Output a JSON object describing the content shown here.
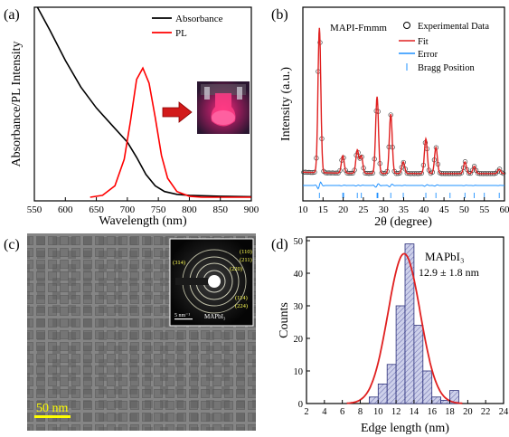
{
  "panels": {
    "a": {
      "label": "(a)"
    },
    "b": {
      "label": "(b)"
    },
    "c": {
      "label": "(c)",
      "scale_bar": "50 nm",
      "inset_scale": "5 nm⁻¹",
      "inset_title": "MAPbI₃",
      "rings": [
        "(110)",
        "(211)",
        "(220)",
        "(314)",
        "(114)",
        "(224)"
      ]
    },
    "d": {
      "label": "(d)"
    }
  },
  "colors": {
    "absorbance": "#000000",
    "pl": "#ff0000",
    "fit": "#e02020",
    "error": "#1e90ff",
    "bragg": "#1e90ff",
    "hist_fill": "#c9cce6",
    "hist_edge": "#2b2f7a"
  },
  "chart_data": [
    {
      "panel": "a",
      "type": "line",
      "xlabel": "Wavelength (nm)",
      "ylabel": "Absorbance/PL Intensity",
      "xlim": [
        550,
        900
      ],
      "xticks": [
        550,
        600,
        650,
        700,
        750,
        800,
        850,
        900
      ],
      "legend": "top-right",
      "series": [
        {
          "name": "Absorbance",
          "x": [
            555,
            575,
            600,
            625,
            650,
            675,
            700,
            715,
            730,
            745,
            760,
            780,
            800,
            850,
            900
          ],
          "y": [
            1.0,
            0.88,
            0.72,
            0.58,
            0.47,
            0.38,
            0.29,
            0.21,
            0.12,
            0.06,
            0.03,
            0.015,
            0.01,
            0.005,
            0.003
          ]
        },
        {
          "name": "PL",
          "x": [
            640,
            660,
            680,
            695,
            705,
            715,
            725,
            735,
            745,
            755,
            765,
            780,
            800,
            820,
            900
          ],
          "y": [
            0.0,
            0.01,
            0.06,
            0.2,
            0.4,
            0.62,
            0.68,
            0.6,
            0.42,
            0.22,
            0.1,
            0.03,
            0.005,
            0.0,
            0.0
          ]
        }
      ]
    },
    {
      "panel": "b",
      "type": "line",
      "title": "MAPI-Fmmm",
      "xlabel": "2θ (degree)",
      "ylabel": "Intensity (a.u.)",
      "xlim": [
        10,
        60
      ],
      "xticks": [
        10,
        15,
        20,
        25,
        30,
        35,
        40,
        45,
        50,
        55,
        60
      ],
      "legend": "top-right",
      "legend_entries": [
        "Experimental Data",
        "Fit",
        "Error",
        "Bragg Position"
      ],
      "peaks": [
        {
          "x": 14.1,
          "y": 1.0
        },
        {
          "x": 19.9,
          "y": 0.12
        },
        {
          "x": 23.5,
          "y": 0.16
        },
        {
          "x": 24.5,
          "y": 0.12
        },
        {
          "x": 28.4,
          "y": 0.53
        },
        {
          "x": 31.8,
          "y": 0.41
        },
        {
          "x": 34.9,
          "y": 0.08
        },
        {
          "x": 40.5,
          "y": 0.24
        },
        {
          "x": 43.0,
          "y": 0.18
        },
        {
          "x": 50.2,
          "y": 0.08
        },
        {
          "x": 52.5,
          "y": 0.05
        },
        {
          "x": 58.7,
          "y": 0.03
        }
      ],
      "bragg_positions": [
        14.1,
        19.9,
        20.1,
        23.5,
        24.5,
        28.4,
        28.6,
        31.8,
        34.9,
        40.5,
        43.0,
        46.5,
        50.2,
        52.5,
        55.0,
        58.7
      ]
    },
    {
      "panel": "d",
      "type": "bar",
      "xlabel": "Edge length (nm)",
      "ylabel": "Counts",
      "xlim": [
        2,
        24
      ],
      "ylim": [
        0,
        50
      ],
      "xticks": [
        2,
        4,
        6,
        8,
        10,
        12,
        14,
        16,
        18,
        20,
        22,
        24
      ],
      "yticks": [
        0,
        10,
        20,
        30,
        40,
        50
      ],
      "annotation_title": "MAPbI₃",
      "annotation": "12.9 ± 1.8 nm",
      "bin_width": 1,
      "bin_starts": [
        9,
        10,
        11,
        12,
        13,
        14,
        15,
        16,
        17,
        18
      ],
      "counts": [
        2,
        6,
        12,
        30,
        49,
        24,
        10,
        2,
        1,
        4
      ],
      "fit": {
        "mean": 12.9,
        "sd": 1.8,
        "peak": 46
      }
    }
  ]
}
